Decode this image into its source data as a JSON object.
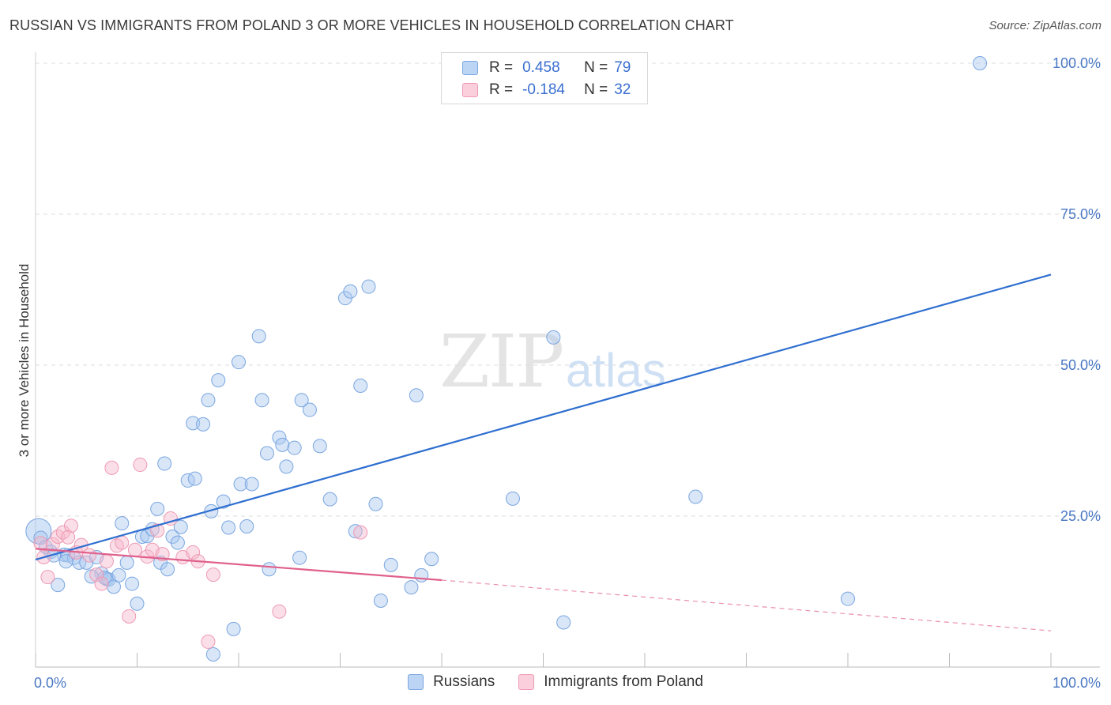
{
  "title": "RUSSIAN VS IMMIGRANTS FROM POLAND 3 OR MORE VEHICLES IN HOUSEHOLD CORRELATION CHART",
  "source": "Source: ZipAtlas.com",
  "watermark": {
    "zip": "ZIP",
    "atlas": "atlas"
  },
  "legend": {
    "r_label": "R =",
    "n_label": "N =",
    "series1": {
      "r": "0.458",
      "n": "79"
    },
    "series2": {
      "r": "-0.184",
      "n": "32"
    }
  },
  "bottom_legend": {
    "series1": "Russians",
    "series2": "Immigrants from Poland"
  },
  "colors": {
    "russians_fill": "#a8c8f0",
    "russians_stroke": "#7aa6e0",
    "russians_line": "#2f6fd0",
    "poland_fill": "#f7b9cb",
    "poland_stroke": "#ee9ab4",
    "poland_line": "#e0608c"
  },
  "chart_data": {
    "type": "scatter",
    "title": "RUSSIAN VS IMMIGRANTS FROM POLAND 3 OR MORE VEHICLES IN HOUSEHOLD CORRELATION CHART",
    "xlabel": "",
    "ylabel": "3 or more Vehicles in Household",
    "xlim": [
      0,
      100
    ],
    "ylim": [
      0,
      100
    ],
    "x_tick_labels": [
      "0.0%",
      "100.0%"
    ],
    "y_tick_labels": [
      {
        "value": 100,
        "label": "100.0%"
      },
      {
        "value": 75,
        "label": "75.0%"
      },
      {
        "value": 50,
        "label": "50.0%"
      },
      {
        "value": 25,
        "label": "25.0%"
      }
    ],
    "series": [
      {
        "name": "Russians",
        "points": [
          [
            0.5,
            21.4
          ],
          [
            1.0,
            19.9
          ],
          [
            1.5,
            19.1
          ],
          [
            2.2,
            13.6
          ],
          [
            2.8,
            18.6
          ],
          [
            3.2,
            18.5
          ],
          [
            3.8,
            18.1
          ],
          [
            4.3,
            17.3
          ],
          [
            5.0,
            17.3
          ],
          [
            6.0,
            18.2
          ],
          [
            6.5,
            15.5
          ],
          [
            7.0,
            14.6
          ],
          [
            7.2,
            14.5
          ],
          [
            7.7,
            13.3
          ],
          [
            8.2,
            15.2
          ],
          [
            8.5,
            23.8
          ],
          [
            9.0,
            17.3
          ],
          [
            9.5,
            13.8
          ],
          [
            10.0,
            10.5
          ],
          [
            10.5,
            21.6
          ],
          [
            11.0,
            21.7
          ],
          [
            11.5,
            22.8
          ],
          [
            12.0,
            26.2
          ],
          [
            12.3,
            17.3
          ],
          [
            12.7,
            33.7
          ],
          [
            13.0,
            16.2
          ],
          [
            13.5,
            21.6
          ],
          [
            14.0,
            20.6
          ],
          [
            14.3,
            23.2
          ],
          [
            15.0,
            30.9
          ],
          [
            15.5,
            40.4
          ],
          [
            15.7,
            31.2
          ],
          [
            16.5,
            40.2
          ],
          [
            17.0,
            44.2
          ],
          [
            17.3,
            25.8
          ],
          [
            18.0,
            47.5
          ],
          [
            18.5,
            27.4
          ],
          [
            19.0,
            23.1
          ],
          [
            19.5,
            6.3
          ],
          [
            20.0,
            50.5
          ],
          [
            20.2,
            30.3
          ],
          [
            20.8,
            23.3
          ],
          [
            21.3,
            30.3
          ],
          [
            22.0,
            54.8
          ],
          [
            22.3,
            44.2
          ],
          [
            22.8,
            35.4
          ],
          [
            23.0,
            16.2
          ],
          [
            24.0,
            38.0
          ],
          [
            24.3,
            36.8
          ],
          [
            24.7,
            33.2
          ],
          [
            25.5,
            36.3
          ],
          [
            26.0,
            18.1
          ],
          [
            26.2,
            44.2
          ],
          [
            27.0,
            42.6
          ],
          [
            28.0,
            36.6
          ],
          [
            29.0,
            27.8
          ],
          [
            30.5,
            61.1
          ],
          [
            31.0,
            62.2
          ],
          [
            31.5,
            22.5
          ],
          [
            32.0,
            46.6
          ],
          [
            32.8,
            63.0
          ],
          [
            34.0,
            11.0
          ],
          [
            35.0,
            16.9
          ],
          [
            37.0,
            13.2
          ],
          [
            37.5,
            45.0
          ],
          [
            38.0,
            15.2
          ],
          [
            39.0,
            17.9
          ],
          [
            47.0,
            27.9
          ],
          [
            51.0,
            54.6
          ],
          [
            52.0,
            7.4
          ],
          [
            65.0,
            28.2
          ],
          [
            80.0,
            11.3
          ],
          [
            93.0,
            100.0
          ],
          [
            17.5,
            2.1
          ],
          [
            1.8,
            18.5
          ],
          [
            3.0,
            17.5
          ],
          [
            5.5,
            15.0
          ],
          [
            6.8,
            14.8
          ],
          [
            33.5,
            27.0
          ]
        ],
        "trend": {
          "x0": 0,
          "y0": 17.8,
          "x1": 100,
          "y1": 65.0
        }
      },
      {
        "name": "Immigrants from Poland",
        "points": [
          [
            0.5,
            20.5
          ],
          [
            0.8,
            18.2
          ],
          [
            1.2,
            14.9
          ],
          [
            1.7,
            20.3
          ],
          [
            2.2,
            21.6
          ],
          [
            2.7,
            22.3
          ],
          [
            3.5,
            23.4
          ],
          [
            4.0,
            19.0
          ],
          [
            4.5,
            20.2
          ],
          [
            5.3,
            18.5
          ],
          [
            6.0,
            15.3
          ],
          [
            6.5,
            13.8
          ],
          [
            7.0,
            17.5
          ],
          [
            7.5,
            33.0
          ],
          [
            8.0,
            20.1
          ],
          [
            8.5,
            20.6
          ],
          [
            9.2,
            8.4
          ],
          [
            9.8,
            19.4
          ],
          [
            10.3,
            33.5
          ],
          [
            11.0,
            18.3
          ],
          [
            11.5,
            19.4
          ],
          [
            12.5,
            18.7
          ],
          [
            13.3,
            24.6
          ],
          [
            14.5,
            18.2
          ],
          [
            15.5,
            19.0
          ],
          [
            16.0,
            17.5
          ],
          [
            17.0,
            4.2
          ],
          [
            17.5,
            15.3
          ],
          [
            24.0,
            9.2
          ],
          [
            32.0,
            22.3
          ],
          [
            3.2,
            21.5
          ],
          [
            12.0,
            22.6
          ]
        ],
        "trend": {
          "x0": 0,
          "y0": 19.6,
          "x1": 40,
          "y1": 14.4
        },
        "trend_dashed": {
          "x0": 40,
          "y0": 14.4,
          "x1": 100,
          "y1": 6.0
        }
      }
    ]
  }
}
